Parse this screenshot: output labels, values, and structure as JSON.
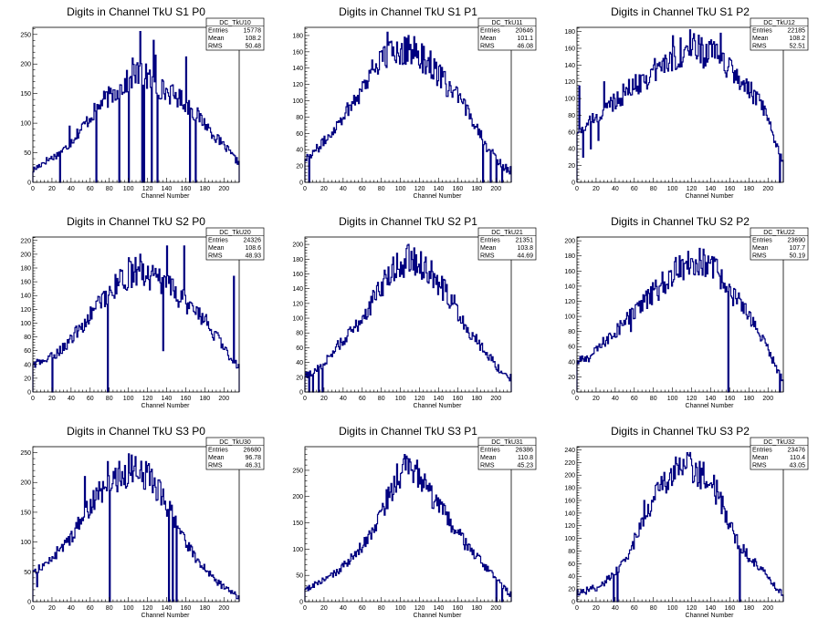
{
  "chart_data": [
    {
      "id": "s1p0",
      "type": "histogram",
      "title": "Digits in Channel TkU S1 P0",
      "xlabel": "Channel Number",
      "ylabel": "",
      "stats": {
        "name": "DC_TkU10",
        "entries": "15778",
        "mean": "108.2",
        "rms": "50.48"
      },
      "xlim": [
        0,
        216
      ],
      "ylim": [
        0,
        262
      ],
      "xticks": [
        0,
        20,
        40,
        60,
        80,
        100,
        120,
        140,
        160,
        180,
        200
      ],
      "yticks": [
        0,
        50,
        100,
        150,
        200,
        250
      ],
      "x": [
        0,
        12,
        24,
        36,
        48,
        60,
        72,
        84,
        96,
        108,
        120,
        132,
        144,
        156,
        168,
        180,
        192,
        204,
        214
      ],
      "values": [
        20,
        35,
        45,
        60,
        85,
        110,
        135,
        150,
        165,
        185,
        175,
        160,
        150,
        140,
        120,
        100,
        75,
        55,
        35
      ],
      "spikes": [
        [
          112,
          255
        ],
        [
          126,
          240
        ],
        [
          100,
          210
        ],
        [
          104,
          210
        ],
        [
          118,
          200
        ],
        [
          128,
          215
        ],
        [
          160,
          212
        ],
        [
          80,
          150
        ],
        [
          46,
          90
        ],
        [
          38,
          95
        ]
      ],
      "dips": [
        [
          28,
          0
        ],
        [
          66,
          0
        ],
        [
          90,
          0
        ],
        [
          100,
          0
        ],
        [
          114,
          0
        ],
        [
          116,
          0
        ],
        [
          124,
          0
        ],
        [
          130,
          0
        ],
        [
          164,
          0
        ],
        [
          170,
          0
        ]
      ]
    },
    {
      "id": "s1p1",
      "type": "histogram",
      "title": "Digits in Channel TkU S1 P1",
      "xlabel": "Channel Number",
      "ylabel": "",
      "stats": {
        "name": "DC_TkU11",
        "entries": "20646",
        "mean": "101.1",
        "rms": "46.08"
      },
      "xlim": [
        0,
        216
      ],
      "ylim": [
        0,
        190
      ],
      "xticks": [
        0,
        20,
        40,
        60,
        80,
        100,
        120,
        140,
        160,
        180,
        200
      ],
      "yticks": [
        0,
        20,
        40,
        60,
        80,
        100,
        120,
        140,
        160,
        180
      ],
      "x": [
        0,
        12,
        24,
        36,
        48,
        60,
        72,
        84,
        96,
        108,
        120,
        132,
        144,
        156,
        168,
        180,
        192,
        204,
        214
      ],
      "values": [
        30,
        40,
        55,
        75,
        95,
        115,
        140,
        155,
        160,
        165,
        155,
        145,
        125,
        110,
        90,
        70,
        40,
        25,
        15
      ],
      "spikes": [
        [
          86,
          184
        ],
        [
          104,
          178
        ],
        [
          96,
          172
        ],
        [
          70,
          150
        ]
      ],
      "dips": [
        [
          4,
          0
        ],
        [
          186,
          0
        ],
        [
          194,
          0
        ],
        [
          200,
          0
        ],
        [
          206,
          0
        ]
      ]
    },
    {
      "id": "s1p2",
      "type": "histogram",
      "title": "Digits in Channel TkU S1 P2",
      "xlabel": "Channel Number",
      "ylabel": "",
      "stats": {
        "name": "DC_TkU12",
        "entries": "22185",
        "mean": "108.2",
        "rms": "52.51"
      },
      "xlim": [
        0,
        216
      ],
      "ylim": [
        0,
        185
      ],
      "xticks": [
        0,
        20,
        40,
        60,
        80,
        100,
        120,
        140,
        160,
        180,
        200
      ],
      "yticks": [
        0,
        20,
        40,
        60,
        80,
        100,
        120,
        140,
        160,
        180
      ],
      "x": [
        0,
        12,
        24,
        36,
        48,
        60,
        72,
        84,
        96,
        108,
        120,
        132,
        144,
        156,
        168,
        180,
        192,
        204,
        214
      ],
      "values": [
        60,
        70,
        80,
        95,
        105,
        115,
        125,
        135,
        145,
        155,
        160,
        155,
        150,
        140,
        125,
        110,
        95,
        60,
        30
      ],
      "spikes": [
        [
          2,
          115
        ],
        [
          28,
          120
        ],
        [
          118,
          182
        ],
        [
          100,
          175
        ],
        [
          150,
          178
        ],
        [
          140,
          170
        ]
      ],
      "dips": [
        [
          6,
          30
        ],
        [
          14,
          40
        ],
        [
          22,
          50
        ],
        [
          212,
          0
        ]
      ]
    },
    {
      "id": "s2p0",
      "type": "histogram",
      "title": "Digits in Channel TkU S2 P0",
      "xlabel": "Channel Number",
      "ylabel": "",
      "stats": {
        "name": "DC_TkU20",
        "entries": "24326",
        "mean": "108.6",
        "rms": "48.93"
      },
      "xlim": [
        0,
        216
      ],
      "ylim": [
        0,
        225
      ],
      "xticks": [
        0,
        20,
        40,
        60,
        80,
        100,
        120,
        140,
        160,
        180,
        200
      ],
      "yticks": [
        0,
        20,
        40,
        60,
        80,
        100,
        120,
        140,
        160,
        180,
        200,
        220
      ],
      "x": [
        0,
        12,
        24,
        36,
        48,
        60,
        72,
        84,
        96,
        108,
        120,
        132,
        144,
        156,
        168,
        180,
        192,
        204,
        214
      ],
      "values": [
        40,
        45,
        55,
        70,
        90,
        110,
        135,
        150,
        165,
        175,
        170,
        160,
        150,
        135,
        120,
        105,
        80,
        55,
        40
      ],
      "spikes": [
        [
          140,
          212
        ],
        [
          158,
          212
        ],
        [
          210,
          168
        ],
        [
          100,
          195
        ],
        [
          112,
          200
        ]
      ],
      "dips": [
        [
          20,
          0
        ],
        [
          78,
          0
        ],
        [
          136,
          60
        ]
      ]
    },
    {
      "id": "s2p1",
      "type": "histogram",
      "title": "Digits in Channel TkU S2 P1",
      "xlabel": "Channel Number",
      "ylabel": "",
      "stats": {
        "name": "DC_TkU21",
        "entries": "21351",
        "mean": "103.8",
        "rms": "44.69"
      },
      "xlim": [
        0,
        216
      ],
      "ylim": [
        0,
        210
      ],
      "xticks": [
        0,
        20,
        40,
        60,
        80,
        100,
        120,
        140,
        160,
        180,
        200
      ],
      "yticks": [
        0,
        20,
        40,
        60,
        80,
        100,
        120,
        140,
        160,
        180,
        200
      ],
      "x": [
        0,
        12,
        24,
        36,
        48,
        60,
        72,
        84,
        96,
        108,
        120,
        132,
        144,
        156,
        168,
        180,
        192,
        204,
        214
      ],
      "values": [
        20,
        30,
        45,
        65,
        80,
        100,
        125,
        150,
        170,
        180,
        175,
        160,
        140,
        120,
        90,
        70,
        50,
        30,
        20
      ],
      "spikes": [
        [
          108,
          200
        ],
        [
          96,
          188
        ],
        [
          116,
          186
        ]
      ],
      "dips": [
        [
          4,
          0
        ],
        [
          8,
          0
        ],
        [
          14,
          0
        ],
        [
          18,
          0
        ]
      ]
    },
    {
      "id": "s2p2",
      "type": "histogram",
      "title": "Digits in Channel TkU S2 P2",
      "xlabel": "Channel Number",
      "ylabel": "",
      "stats": {
        "name": "DC_TkU22",
        "entries": "23690",
        "mean": "107.7",
        "rms": "50.19"
      },
      "xlim": [
        0,
        216
      ],
      "ylim": [
        0,
        205
      ],
      "xticks": [
        0,
        20,
        40,
        60,
        80,
        100,
        120,
        140,
        160,
        180,
        200
      ],
      "yticks": [
        0,
        20,
        40,
        60,
        80,
        100,
        120,
        140,
        160,
        180,
        200
      ],
      "x": [
        0,
        12,
        24,
        36,
        48,
        60,
        72,
        84,
        96,
        108,
        120,
        132,
        144,
        156,
        168,
        180,
        192,
        204,
        214
      ],
      "values": [
        40,
        45,
        60,
        75,
        90,
        105,
        120,
        135,
        150,
        165,
        175,
        170,
        160,
        145,
        120,
        100,
        75,
        45,
        20
      ],
      "spikes": [
        [
          128,
          190
        ],
        [
          116,
          186
        ],
        [
          96,
          160
        ],
        [
          56,
          80
        ]
      ],
      "dips": [
        [
          158,
          0
        ],
        [
          212,
          0
        ]
      ]
    },
    {
      "id": "s3p0",
      "type": "histogram",
      "title": "Digits in Channel TkU S3 P0",
      "xlabel": "Channel Number",
      "ylabel": "",
      "stats": {
        "name": "DC_TkU30",
        "entries": "26680",
        "mean": "96.78",
        "rms": "46.31"
      },
      "xlim": [
        0,
        216
      ],
      "ylim": [
        0,
        260
      ],
      "xticks": [
        0,
        20,
        40,
        60,
        80,
        100,
        120,
        140,
        160,
        180,
        200
      ],
      "yticks": [
        0,
        50,
        100,
        150,
        200,
        250
      ],
      "x": [
        0,
        12,
        24,
        36,
        48,
        60,
        72,
        84,
        96,
        108,
        120,
        132,
        144,
        156,
        168,
        180,
        192,
        204,
        214
      ],
      "values": [
        50,
        60,
        80,
        100,
        130,
        160,
        185,
        205,
        215,
        225,
        210,
        185,
        150,
        110,
        80,
        55,
        35,
        20,
        10
      ],
      "spikes": [
        [
          100,
          248
        ],
        [
          78,
          235
        ],
        [
          54,
          210
        ],
        [
          118,
          235
        ],
        [
          122,
          195
        ]
      ],
      "dips": [
        [
          4,
          25
        ],
        [
          80,
          0
        ],
        [
          142,
          0
        ],
        [
          146,
          0
        ],
        [
          150,
          0
        ]
      ]
    },
    {
      "id": "s3p1",
      "type": "histogram",
      "title": "Digits in Channel TkU S3 P1",
      "xlabel": "Channel Number",
      "ylabel": "",
      "stats": {
        "name": "DC_TkU31",
        "entries": "26386",
        "mean": "110.8",
        "rms": "45.23"
      },
      "xlim": [
        0,
        216
      ],
      "ylim": [
        0,
        295
      ],
      "xticks": [
        0,
        20,
        40,
        60,
        80,
        100,
        120,
        140,
        160,
        180,
        200
      ],
      "yticks": [
        0,
        50,
        100,
        150,
        200,
        250
      ],
      "x": [
        0,
        12,
        24,
        36,
        48,
        60,
        72,
        84,
        96,
        108,
        120,
        132,
        144,
        156,
        168,
        180,
        192,
        204,
        214
      ],
      "values": [
        20,
        35,
        45,
        60,
        80,
        105,
        140,
        185,
        230,
        255,
        240,
        200,
        170,
        140,
        110,
        85,
        60,
        35,
        15
      ],
      "spikes": [
        [
          104,
          280
        ],
        [
          96,
          262
        ],
        [
          114,
          248
        ]
      ],
      "dips": [
        [
          200,
          0
        ],
        [
          206,
          0
        ]
      ]
    },
    {
      "id": "s3p2",
      "type": "histogram",
      "title": "Digits in Channel TkU S3 P2",
      "xlabel": "Channel Number",
      "ylabel": "",
      "stats": {
        "name": "DC_TkU32",
        "entries": "23476",
        "mean": "110.4",
        "rms": "43.05"
      },
      "xlim": [
        0,
        216
      ],
      "ylim": [
        0,
        245
      ],
      "xticks": [
        0,
        20,
        40,
        60,
        80,
        100,
        120,
        140,
        160,
        180,
        200
      ],
      "yticks": [
        0,
        20,
        40,
        60,
        80,
        100,
        120,
        140,
        160,
        180,
        200,
        220,
        240
      ],
      "x": [
        0,
        12,
        24,
        36,
        48,
        60,
        72,
        84,
        96,
        108,
        120,
        132,
        144,
        156,
        168,
        180,
        192,
        204,
        214
      ],
      "values": [
        15,
        18,
        25,
        40,
        60,
        95,
        140,
        175,
        195,
        215,
        210,
        200,
        180,
        140,
        95,
        70,
        55,
        30,
        15
      ],
      "spikes": [
        [
          116,
          232
        ],
        [
          104,
          218
        ],
        [
          70,
          160
        ]
      ],
      "dips": [
        [
          38,
          0
        ],
        [
          42,
          0
        ],
        [
          170,
          0
        ]
      ]
    }
  ],
  "colors": {
    "line": "#000080",
    "frame": "#000000",
    "background": "#ffffff"
  }
}
